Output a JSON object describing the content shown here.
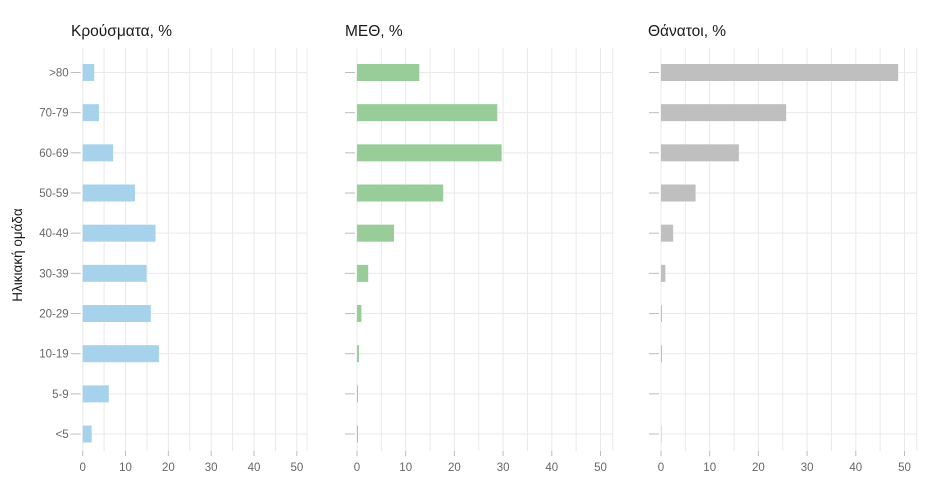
{
  "figure": {
    "y_axis_title": "Ηλικιακή ομάδα",
    "background_color": "#FFFFFF",
    "gridline_color": "#E9E9E9",
    "axis_text_color": "#666666",
    "title_text_color": "#1A1A1A"
  },
  "chart_data": [
    {
      "type": "bar",
      "orientation": "horizontal",
      "title": "Κρούσματα, %",
      "color": "#A6D3EB",
      "categories": [
        ">80",
        "70-79",
        "60-69",
        "50-59",
        "40-49",
        "30-39",
        "20-29",
        "10-19",
        "5-9",
        "<5"
      ],
      "values": [
        2.7,
        3.8,
        7.1,
        12.2,
        17.0,
        14.9,
        15.9,
        17.8,
        6.1,
        2.1
      ],
      "xlim": [
        0,
        50
      ],
      "xticks": [
        0,
        10,
        20,
        30,
        40,
        50
      ],
      "grid_minor_step": 5,
      "legend": "none"
    },
    {
      "type": "bar",
      "orientation": "horizontal",
      "title": "ΜΕΘ, %",
      "color": "#98CC98",
      "categories": [
        ">80",
        "70-79",
        "60-69",
        "50-59",
        "40-49",
        "30-39",
        "20-29",
        "10-19",
        "5-9",
        "<5"
      ],
      "values": [
        12.8,
        28.8,
        29.7,
        17.7,
        7.6,
        2.3,
        0.9,
        0.4,
        0.2,
        0.2
      ],
      "xlim": [
        0,
        50
      ],
      "xticks": [
        0,
        10,
        20,
        30,
        40,
        50
      ],
      "grid_minor_step": 5,
      "legend": "none"
    },
    {
      "type": "bar",
      "orientation": "horizontal",
      "title": "Θάνατοι, %",
      "color": "#BFBFBF",
      "categories": [
        ">80",
        "70-79",
        "60-69",
        "50-59",
        "40-49",
        "30-39",
        "20-29",
        "10-19",
        "5-9",
        "<5"
      ],
      "values": [
        48.7,
        25.7,
        16.0,
        7.1,
        2.5,
        0.9,
        0.2,
        0.2,
        0,
        0.1
      ],
      "xlim": [
        0,
        50
      ],
      "xticks": [
        0,
        10,
        20,
        30,
        40,
        50
      ],
      "grid_minor_step": 5,
      "legend": "none"
    }
  ]
}
